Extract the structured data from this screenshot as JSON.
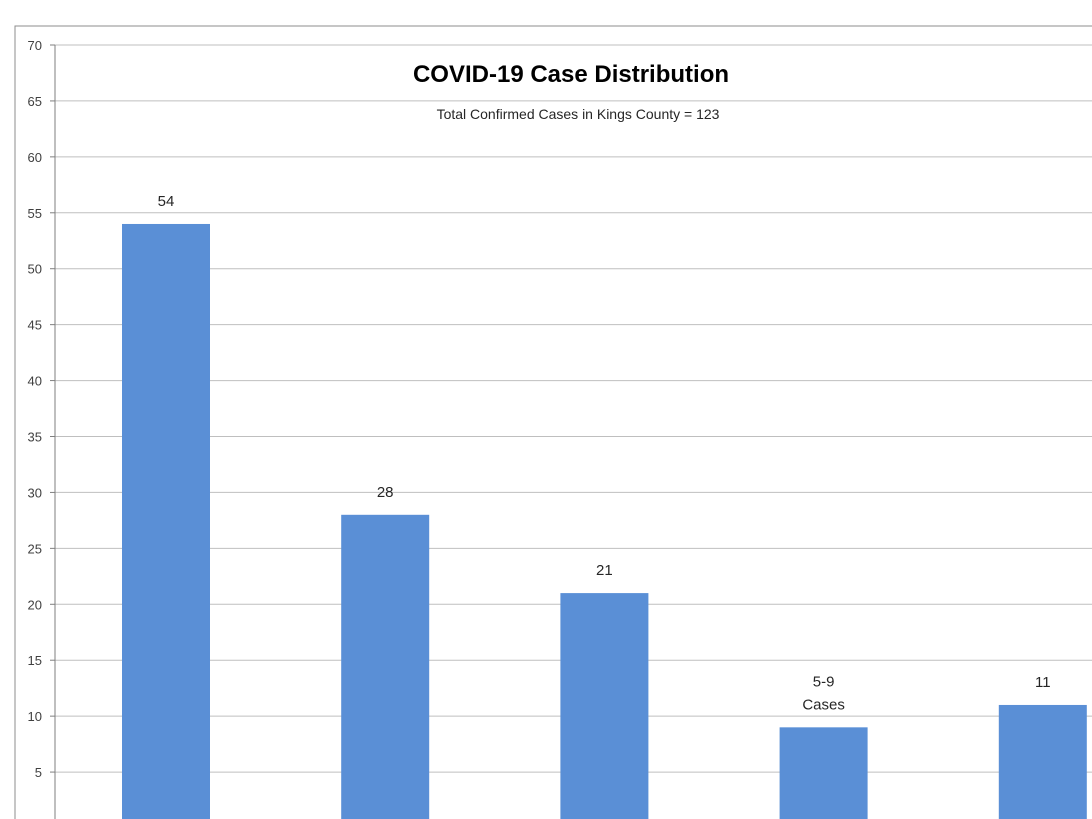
{
  "chart_data": {
    "type": "bar",
    "title": "COVID-19 Case Distribution",
    "subtitle": "Total Confirmed Cases in Kings County = 123",
    "xlabel": "",
    "ylabel": "",
    "ylim": [
      0,
      70
    ],
    "yticks": [
      5,
      10,
      15,
      20,
      25,
      30,
      35,
      40,
      45,
      50,
      55,
      60,
      65,
      70
    ],
    "grid": true,
    "values": [
      54,
      28,
      21,
      9,
      11
    ],
    "data_labels": [
      [
        "54"
      ],
      [
        "28"
      ],
      [
        "21"
      ],
      [
        "5-9",
        "Cases"
      ],
      [
        "11"
      ]
    ],
    "colors": {
      "bar": "#5a8fd6",
      "grid": "#bfbfbf",
      "axis": "#7f7f7f"
    }
  }
}
